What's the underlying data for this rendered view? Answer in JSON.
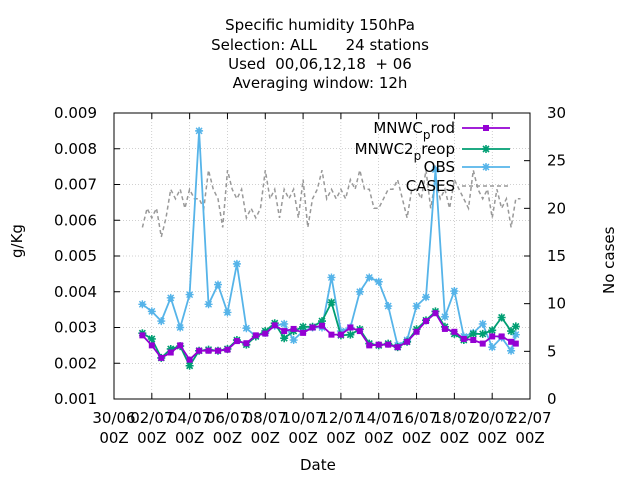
{
  "chart_data": {
    "type": "line",
    "title_lines": [
      "Specific humidity 150hPa",
      "Selection: ALL      24 stations",
      "Used  00,06,12,18  + 06",
      "Averaging window: 12h"
    ],
    "xlabel": "Date",
    "ylabel": "g/Kg",
    "y2label": "No cases",
    "x_ticks": [
      [
        "30/06",
        "00Z"
      ],
      [
        "02/07",
        "00Z"
      ],
      [
        "04/07",
        "00Z"
      ],
      [
        "06/07",
        "00Z"
      ],
      [
        "08/07",
        "00Z"
      ],
      [
        "10/07",
        "00Z"
      ],
      [
        "12/07",
        "00Z"
      ],
      [
        "14/07",
        "00Z"
      ],
      [
        "16/07",
        "00Z"
      ],
      [
        "18/07",
        "00Z"
      ],
      [
        "20/07",
        "00Z"
      ],
      [
        "22/07",
        "00Z"
      ]
    ],
    "x_range_days": [
      0,
      22
    ],
    "ylim": [
      0.001,
      0.009
    ],
    "y_ticks": [
      "0.001",
      "0.002",
      "0.003",
      "0.004",
      "0.005",
      "0.006",
      "0.007",
      "0.008",
      "0.009"
    ],
    "y2lim": [
      0,
      30
    ],
    "y2_ticks": [
      "0",
      "5",
      "10",
      "15",
      "20",
      "25",
      "30"
    ],
    "grid": true,
    "legend_position": "top-right",
    "series": [
      {
        "name_main": "MNWC",
        "name_sub": "p",
        "name_rest": "rod",
        "color": "#9400d3",
        "marker": "filled-square",
        "axis": "y",
        "x": [
          1.5,
          2.0,
          2.5,
          3.0,
          3.5,
          4.0,
          4.5,
          5.0,
          5.5,
          6.0,
          6.5,
          7.0,
          7.5,
          8.0,
          8.5,
          9.0,
          9.5,
          10.0,
          10.5,
          11.0,
          11.5,
          12.0,
          12.5,
          13.0,
          13.5,
          14.0,
          14.5,
          15.0,
          15.5,
          16.0,
          16.5,
          17.0,
          17.5,
          18.0,
          18.5,
          19.0,
          19.5,
          20.0,
          20.5,
          21.0,
          21.25
        ],
        "y": [
          0.00278,
          0.0025,
          0.00215,
          0.0023,
          0.0025,
          0.0021,
          0.00235,
          0.00235,
          0.00235,
          0.00238,
          0.00262,
          0.00256,
          0.00278,
          0.00283,
          0.00306,
          0.0029,
          0.00296,
          0.00285,
          0.003,
          0.00305,
          0.0028,
          0.0028,
          0.003,
          0.0029,
          0.0025,
          0.00252,
          0.00252,
          0.00245,
          0.0026,
          0.00288,
          0.00318,
          0.0034,
          0.00296,
          0.00288,
          0.00268,
          0.00265,
          0.00255,
          0.00275,
          0.00275,
          0.0026,
          0.00255
        ]
      },
      {
        "name_main": "MNWC2",
        "name_sub": "p",
        "name_rest": "reop",
        "color": "#009e73",
        "marker": "cross",
        "axis": "y",
        "x": [
          1.5,
          2.0,
          2.5,
          3.0,
          3.5,
          4.0,
          4.5,
          5.0,
          5.5,
          6.0,
          6.5,
          7.0,
          7.5,
          8.0,
          8.5,
          9.0,
          9.5,
          10.0,
          10.5,
          11.0,
          11.5,
          12.0,
          12.5,
          13.0,
          13.5,
          14.0,
          14.5,
          15.0,
          15.5,
          16.0,
          16.5,
          17.0,
          17.5,
          18.0,
          18.5,
          19.0,
          19.5,
          20.0,
          20.5,
          21.0,
          21.25
        ],
        "y": [
          0.00284,
          0.00268,
          0.00215,
          0.0024,
          0.00248,
          0.00193,
          0.00235,
          0.00238,
          0.00235,
          0.0024,
          0.00265,
          0.00252,
          0.00275,
          0.0029,
          0.00312,
          0.0027,
          0.0029,
          0.00302,
          0.00302,
          0.00318,
          0.0037,
          0.00278,
          0.0028,
          0.00295,
          0.00255,
          0.0025,
          0.00255,
          0.00245,
          0.0026,
          0.00295,
          0.0032,
          0.00345,
          0.00302,
          0.00282,
          0.00265,
          0.00282,
          0.00282,
          0.00292,
          0.00328,
          0.0029,
          0.00303
        ]
      },
      {
        "name_main": "OBS",
        "name_sub": "",
        "name_rest": "",
        "color": "#56b4e9",
        "marker": "star",
        "axis": "y",
        "x": [
          1.5,
          2.0,
          2.5,
          3.0,
          3.5,
          4.0,
          4.5,
          5.0,
          5.5,
          6.0,
          6.5,
          7.0,
          7.5,
          8.0,
          8.5,
          9.0,
          9.5,
          10.0,
          10.5,
          11.0,
          11.5,
          12.0,
          12.5,
          13.0,
          13.5,
          14.0,
          14.5,
          15.0,
          15.5,
          16.0,
          16.5,
          17.0,
          17.5,
          18.0,
          18.5,
          19.0,
          19.5,
          20.0,
          20.5,
          21.0,
          21.25
        ],
        "y": [
          0.00365,
          0.00345,
          0.00318,
          0.00383,
          0.003,
          0.00392,
          0.0085,
          0.00365,
          0.0042,
          0.00342,
          0.00478,
          0.00298,
          0.00275,
          0.00285,
          0.00305,
          0.0031,
          0.00265,
          0.0029,
          0.003,
          0.003,
          0.0044,
          0.0029,
          0.003,
          0.004,
          0.0044,
          0.00428,
          0.0036,
          0.0025,
          0.00265,
          0.0036,
          0.00385,
          0.00742,
          0.0033,
          0.00402,
          0.00275,
          0.00285,
          0.0031,
          0.00245,
          0.00272,
          0.00235,
          0.0028
        ]
      },
      {
        "name_main": "CASES",
        "name_sub": "",
        "name_rest": "",
        "color": "#999999",
        "marker": "none",
        "dashed": true,
        "axis": "y2",
        "x": [
          1.5,
          1.75,
          2.0,
          2.25,
          2.5,
          2.75,
          3.0,
          3.25,
          3.5,
          3.75,
          4.0,
          4.25,
          4.5,
          4.75,
          5.0,
          5.25,
          5.5,
          5.75,
          6.0,
          6.25,
          6.5,
          6.75,
          7.0,
          7.25,
          7.5,
          7.75,
          8.0,
          8.25,
          8.5,
          8.75,
          9.0,
          9.25,
          9.5,
          9.75,
          10.0,
          10.25,
          10.5,
          10.75,
          11.0,
          11.25,
          11.5,
          11.75,
          12.0,
          12.25,
          12.5,
          12.75,
          13.0,
          13.25,
          13.5,
          13.75,
          14.0,
          14.25,
          14.5,
          14.75,
          15.0,
          15.25,
          15.5,
          15.75,
          16.0,
          16.25,
          16.5,
          16.75,
          17.0,
          17.25,
          17.5,
          17.75,
          18.0,
          18.25,
          18.5,
          18.75,
          19.0,
          19.25,
          19.5,
          19.75,
          20.0,
          20.25,
          20.5,
          20.75,
          21.0,
          21.25,
          21.5
        ],
        "y": [
          18,
          20,
          19,
          20,
          17,
          19,
          22,
          21,
          22,
          20,
          22,
          21,
          21,
          20,
          24,
          22,
          21,
          18,
          24,
          22,
          21,
          22,
          19,
          20,
          19,
          20,
          24,
          21,
          22,
          19,
          22,
          21,
          22,
          19,
          23,
          18,
          21,
          22,
          24,
          21,
          22,
          21,
          22,
          21,
          23,
          22,
          24,
          22,
          22,
          20,
          20,
          21,
          22,
          22,
          23,
          21,
          19,
          22,
          22,
          21,
          24,
          20,
          23,
          21,
          22,
          20,
          23,
          22,
          21,
          20,
          24,
          22,
          21,
          22,
          19,
          22,
          20,
          21,
          18,
          21,
          21
        ]
      }
    ]
  }
}
